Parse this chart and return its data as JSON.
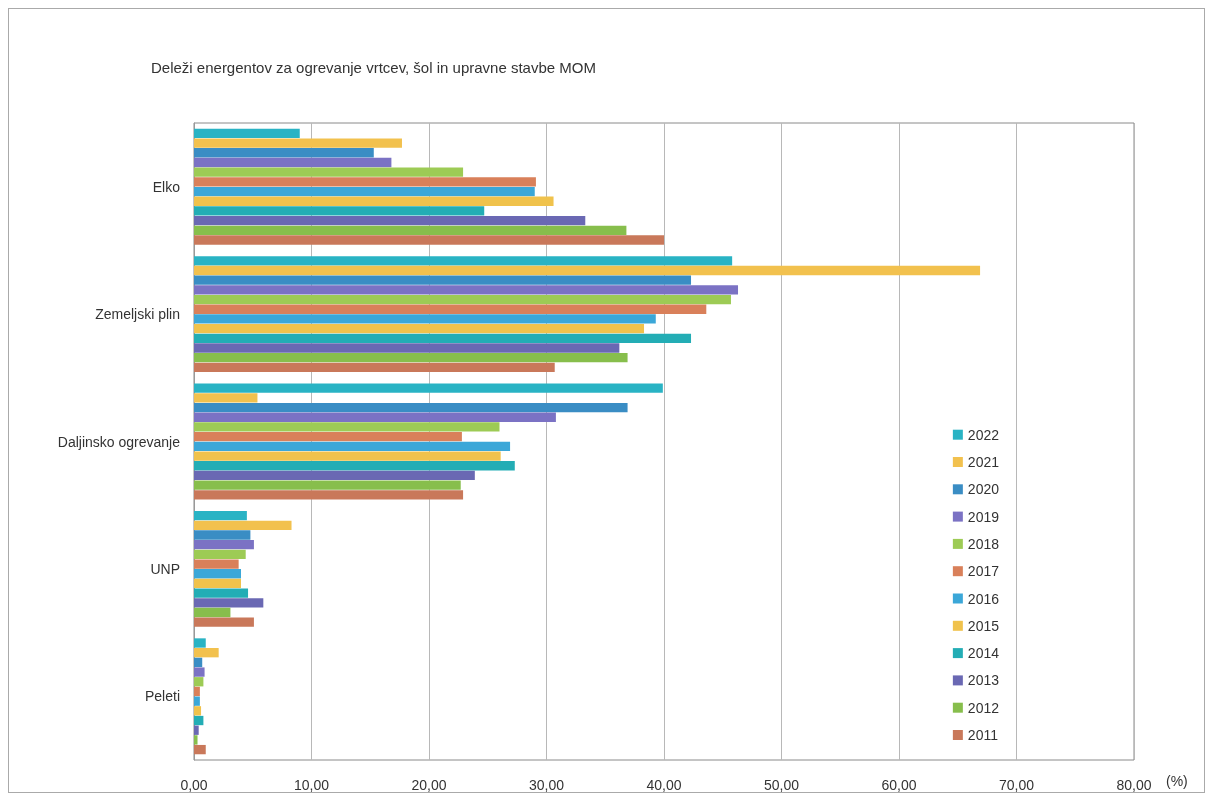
{
  "chart_data": {
    "type": "bar",
    "orientation": "horizontal",
    "title": "Deleži energentov za ogrevanje vrtcev, šol in upravne stavbe MOM",
    "xlabel": "(%)",
    "categories": [
      "Elko",
      "Zemeljski plin",
      "Daljinsko ogrevanje",
      "UNP",
      "Peleti"
    ],
    "series": [
      {
        "name": "2022",
        "color": "#29b3c4",
        "values": [
          9.0,
          45.8,
          39.9,
          4.5,
          1.0
        ]
      },
      {
        "name": "2021",
        "color": "#f2c14e",
        "values": [
          17.7,
          66.9,
          5.4,
          8.3,
          2.1
        ]
      },
      {
        "name": "2020",
        "color": "#3a8dc4",
        "values": [
          15.3,
          42.3,
          36.9,
          4.8,
          0.7
        ]
      },
      {
        "name": "2019",
        "color": "#7b72c4",
        "values": [
          16.8,
          46.3,
          30.8,
          5.1,
          0.9
        ]
      },
      {
        "name": "2018",
        "color": "#9dcb55",
        "values": [
          22.9,
          45.7,
          26.0,
          4.4,
          0.8
        ]
      },
      {
        "name": "2017",
        "color": "#d9805a",
        "values": [
          29.1,
          43.6,
          22.8,
          3.8,
          0.5
        ]
      },
      {
        "name": "2016",
        "color": "#3ba7d8",
        "values": [
          29.0,
          39.3,
          26.9,
          4.0,
          0.5
        ]
      },
      {
        "name": "2015",
        "color": "#f0c24c",
        "values": [
          30.6,
          38.3,
          26.1,
          4.0,
          0.6
        ]
      },
      {
        "name": "2014",
        "color": "#23adb5",
        "values": [
          24.7,
          42.3,
          27.3,
          4.6,
          0.8
        ]
      },
      {
        "name": "2013",
        "color": "#6a68b3",
        "values": [
          33.3,
          36.2,
          23.9,
          5.9,
          0.4
        ]
      },
      {
        "name": "2012",
        "color": "#87be4c",
        "values": [
          36.8,
          36.9,
          22.7,
          3.1,
          0.3
        ]
      },
      {
        "name": "2011",
        "color": "#c9785a",
        "values": [
          40.0,
          30.7,
          22.9,
          5.1,
          1.0
        ]
      }
    ],
    "xlim": [
      0,
      80
    ],
    "xticks": [
      {
        "value": 0,
        "label": "0,00"
      },
      {
        "value": 10,
        "label": "10,00"
      },
      {
        "value": 20,
        "label": "20,00"
      },
      {
        "value": 30,
        "label": "30,00"
      },
      {
        "value": 40,
        "label": "40,00"
      },
      {
        "value": 50,
        "label": "50,00"
      },
      {
        "value": 60,
        "label": "60,00"
      },
      {
        "value": 70,
        "label": "70,00"
      },
      {
        "value": 80,
        "label": "80,00"
      }
    ],
    "grid": "x",
    "legend": "bottom right"
  }
}
